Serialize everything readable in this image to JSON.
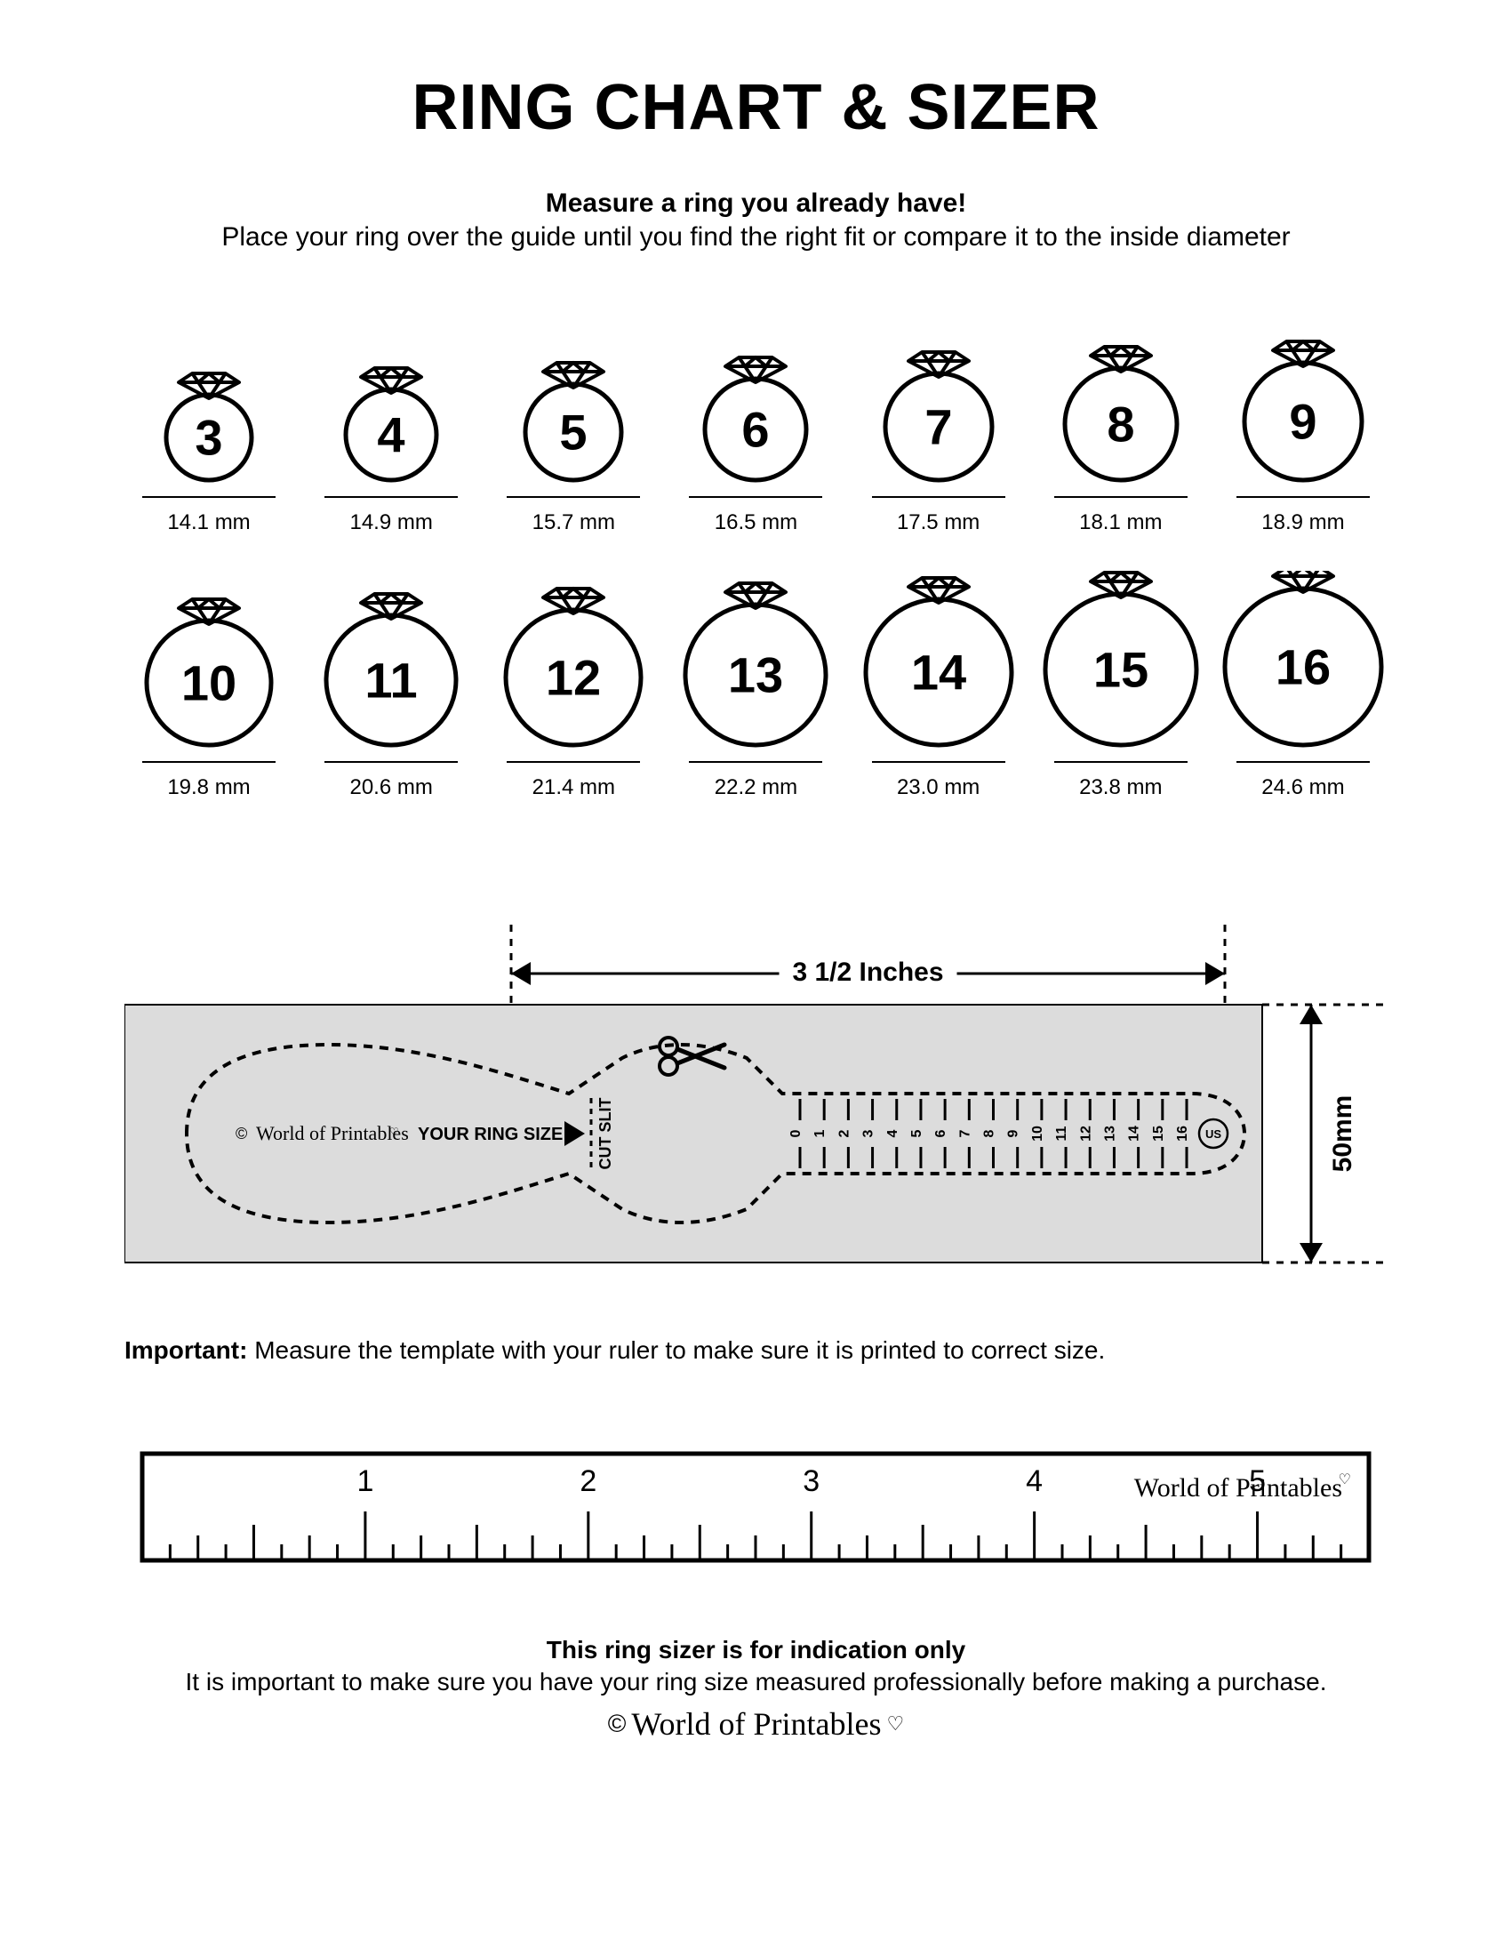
{
  "title": "RING CHART & SIZER",
  "subtitle_bold": "Measure a ring you already have!",
  "subtitle_text": "Place your ring over the guide until you find the right fit or compare it to the inside diameter",
  "rings": [
    {
      "size": "3",
      "diameter_mm": "14.1 mm",
      "circle_r": 48
    },
    {
      "size": "4",
      "diameter_mm": "14.9 mm",
      "circle_r": 51
    },
    {
      "size": "5",
      "diameter_mm": "15.7 mm",
      "circle_r": 54
    },
    {
      "size": "6",
      "diameter_mm": "16.5 mm",
      "circle_r": 57
    },
    {
      "size": "7",
      "diameter_mm": "17.5 mm",
      "circle_r": 60
    },
    {
      "size": "8",
      "diameter_mm": "18.1 mm",
      "circle_r": 63
    },
    {
      "size": "9",
      "diameter_mm": "18.9 mm",
      "circle_r": 66
    },
    {
      "size": "10",
      "diameter_mm": "19.8 mm",
      "circle_r": 70
    },
    {
      "size": "11",
      "diameter_mm": "20.6 mm",
      "circle_r": 73
    },
    {
      "size": "12",
      "diameter_mm": "21.4 mm",
      "circle_r": 76
    },
    {
      "size": "13",
      "diameter_mm": "22.2 mm",
      "circle_r": 79
    },
    {
      "size": "14",
      "diameter_mm": "23.0 mm",
      "circle_r": 82
    },
    {
      "size": "15",
      "diameter_mm": "23.8 mm",
      "circle_r": 85
    },
    {
      "size": "16",
      "diameter_mm": "24.6 mm",
      "circle_r": 88
    }
  ],
  "ring_style": {
    "stroke": "#000000",
    "stroke_width": 5,
    "size_number_fontsize": 56,
    "size_number_fontweight": "700",
    "size_number_fontfamily": "Arial"
  },
  "sizer": {
    "width_label": "3 1/2 Inches",
    "height_label": "50mm",
    "inside_text": "YOUR RING SIZE",
    "cut_slit_text": "CUT SLIT",
    "us_label": "US",
    "brand_text": "World of Printables",
    "ruler_numbers": [
      "0",
      "1",
      "2",
      "3",
      "4",
      "5",
      "6",
      "7",
      "8",
      "9",
      "10",
      "11",
      "12",
      "13",
      "14",
      "15",
      "16"
    ],
    "colors": {
      "strip_bg": "#dcdcdc",
      "dash": "#000000",
      "outline": "#000000"
    }
  },
  "important_label": "Important:",
  "important_text": " Measure the template with your ruler to make sure it is printed to correct size.",
  "ruler": {
    "inch_labels": [
      "1",
      "2",
      "3",
      "4",
      "5"
    ],
    "brand_text": "World of Printables",
    "border_color": "#000000"
  },
  "footer_bold": "This ring sizer is for indication only",
  "footer_text": "It is important to make sure you have your ring size measured professionally before making a purchase.",
  "footer_brand": "World of Printables"
}
